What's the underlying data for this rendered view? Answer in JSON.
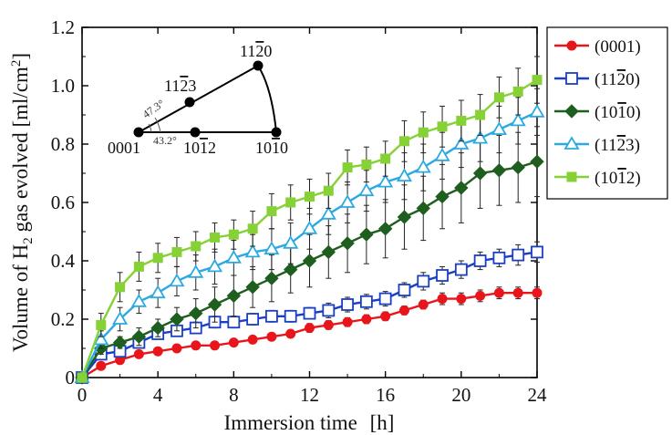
{
  "chart_data": {
    "type": "line",
    "title": "",
    "xlabel": "Immersion time",
    "xunit": "[h]",
    "ylabel_prefix": "Volume of H",
    "ylabel_sub": "2",
    "ylabel_suffix": " gas evolved  [ml/cm",
    "ylabel_sup": "2",
    "ylabel_end": "]",
    "xlim": [
      0,
      24
    ],
    "ylim": [
      0,
      1.2
    ],
    "xticks": [
      "0",
      "4",
      "8",
      "12",
      "16",
      "20",
      "24"
    ],
    "yticks": [
      "0",
      "0.2",
      "0.4",
      "0.6",
      "0.8",
      "1.0",
      "1.2"
    ],
    "grid": false,
    "legend_position": "right-outside-top",
    "x": [
      0,
      1,
      2,
      3,
      4,
      5,
      6,
      7,
      8,
      9,
      10,
      11,
      12,
      13,
      14,
      15,
      16,
      17,
      18,
      19,
      20,
      21,
      22,
      23,
      24
    ],
    "series": [
      {
        "name": "(0001)",
        "color": "#e8161b",
        "marker": "circle-filled",
        "values": [
          0,
          0.04,
          0.06,
          0.08,
          0.09,
          0.1,
          0.11,
          0.11,
          0.12,
          0.13,
          0.14,
          0.15,
          0.17,
          0.18,
          0.19,
          0.2,
          0.21,
          0.23,
          0.25,
          0.27,
          0.27,
          0.28,
          0.29,
          0.29,
          0.29
        ],
        "errors": [
          0,
          0.01,
          0.01,
          0.01,
          0.01,
          0.01,
          0.01,
          0.01,
          0.01,
          0.01,
          0.01,
          0.01,
          0.015,
          0.015,
          0.015,
          0.015,
          0.015,
          0.015,
          0.015,
          0.02,
          0.02,
          0.02,
          0.02,
          0.02,
          0.02
        ]
      },
      {
        "name": "(11̅2̅0)",
        "label_parts": [
          "(11",
          "2",
          "0)"
        ],
        "color": "#1a3fc4",
        "marker": "square-open",
        "values": [
          0,
          0.08,
          0.09,
          0.12,
          0.15,
          0.16,
          0.17,
          0.19,
          0.19,
          0.2,
          0.21,
          0.21,
          0.22,
          0.23,
          0.25,
          0.26,
          0.27,
          0.3,
          0.33,
          0.35,
          0.37,
          0.4,
          0.41,
          0.42,
          0.43
        ],
        "errors": [
          0,
          0.01,
          0.01,
          0.015,
          0.015,
          0.015,
          0.02,
          0.02,
          0.02,
          0.02,
          0.02,
          0.02,
          0.02,
          0.025,
          0.025,
          0.025,
          0.025,
          0.025,
          0.03,
          0.03,
          0.03,
          0.03,
          0.03,
          0.035,
          0.035
        ]
      },
      {
        "name": "(10̅1̅0)",
        "label_parts": [
          "(10",
          "1",
          "0)"
        ],
        "color": "#1e5e1e",
        "marker": "diamond-filled",
        "values": [
          0,
          0.1,
          0.12,
          0.14,
          0.17,
          0.2,
          0.22,
          0.25,
          0.28,
          0.31,
          0.34,
          0.37,
          0.4,
          0.43,
          0.46,
          0.49,
          0.51,
          0.55,
          0.58,
          0.62,
          0.65,
          0.7,
          0.71,
          0.72,
          0.74
        ],
        "errors": [
          0,
          0.02,
          0.02,
          0.03,
          0.03,
          0.04,
          0.05,
          0.06,
          0.07,
          0.07,
          0.08,
          0.08,
          0.09,
          0.09,
          0.1,
          0.1,
          0.1,
          0.11,
          0.11,
          0.11,
          0.12,
          0.12,
          0.12,
          0.12,
          0.12
        ]
      },
      {
        "name": "(11̅2̅3)",
        "label_parts": [
          "(11",
          "2",
          "3)"
        ],
        "color": "#2ca9e1",
        "marker": "triangle-open",
        "values": [
          0,
          0.13,
          0.2,
          0.26,
          0.29,
          0.33,
          0.36,
          0.38,
          0.41,
          0.43,
          0.44,
          0.46,
          0.51,
          0.56,
          0.6,
          0.64,
          0.67,
          0.69,
          0.72,
          0.76,
          0.8,
          0.82,
          0.85,
          0.88,
          0.91
        ],
        "errors": [
          0,
          0.03,
          0.04,
          0.04,
          0.05,
          0.05,
          0.06,
          0.06,
          0.06,
          0.06,
          0.07,
          0.07,
          0.07,
          0.07,
          0.07,
          0.07,
          0.07,
          0.08,
          0.08,
          0.08,
          0.08,
          0.08,
          0.08,
          0.08,
          0.08
        ]
      },
      {
        "name": "(10̅1̅2)",
        "label_parts": [
          "(10",
          "1",
          "2)"
        ],
        "color": "#86d136",
        "marker": "square-filled",
        "values": [
          0,
          0.18,
          0.31,
          0.38,
          0.41,
          0.43,
          0.45,
          0.48,
          0.49,
          0.51,
          0.57,
          0.6,
          0.62,
          0.64,
          0.72,
          0.73,
          0.75,
          0.81,
          0.84,
          0.86,
          0.88,
          0.9,
          0.96,
          0.98,
          1.02
        ],
        "errors": [
          0,
          0.04,
          0.05,
          0.05,
          0.05,
          0.05,
          0.05,
          0.05,
          0.05,
          0.06,
          0.06,
          0.06,
          0.06,
          0.06,
          0.06,
          0.06,
          0.06,
          0.07,
          0.07,
          0.07,
          0.07,
          0.07,
          0.07,
          0.08,
          0.08
        ]
      }
    ],
    "inset": {
      "label_0001": "0001",
      "label_1012": [
        "10",
        "1",
        "2"
      ],
      "label_1010": [
        "10",
        "1",
        "0"
      ],
      "label_1123": [
        "11",
        "2",
        "3"
      ],
      "label_1120": [
        "11",
        "2",
        "0"
      ],
      "angle_1": "47.3°",
      "angle_2": "43.2°"
    }
  }
}
